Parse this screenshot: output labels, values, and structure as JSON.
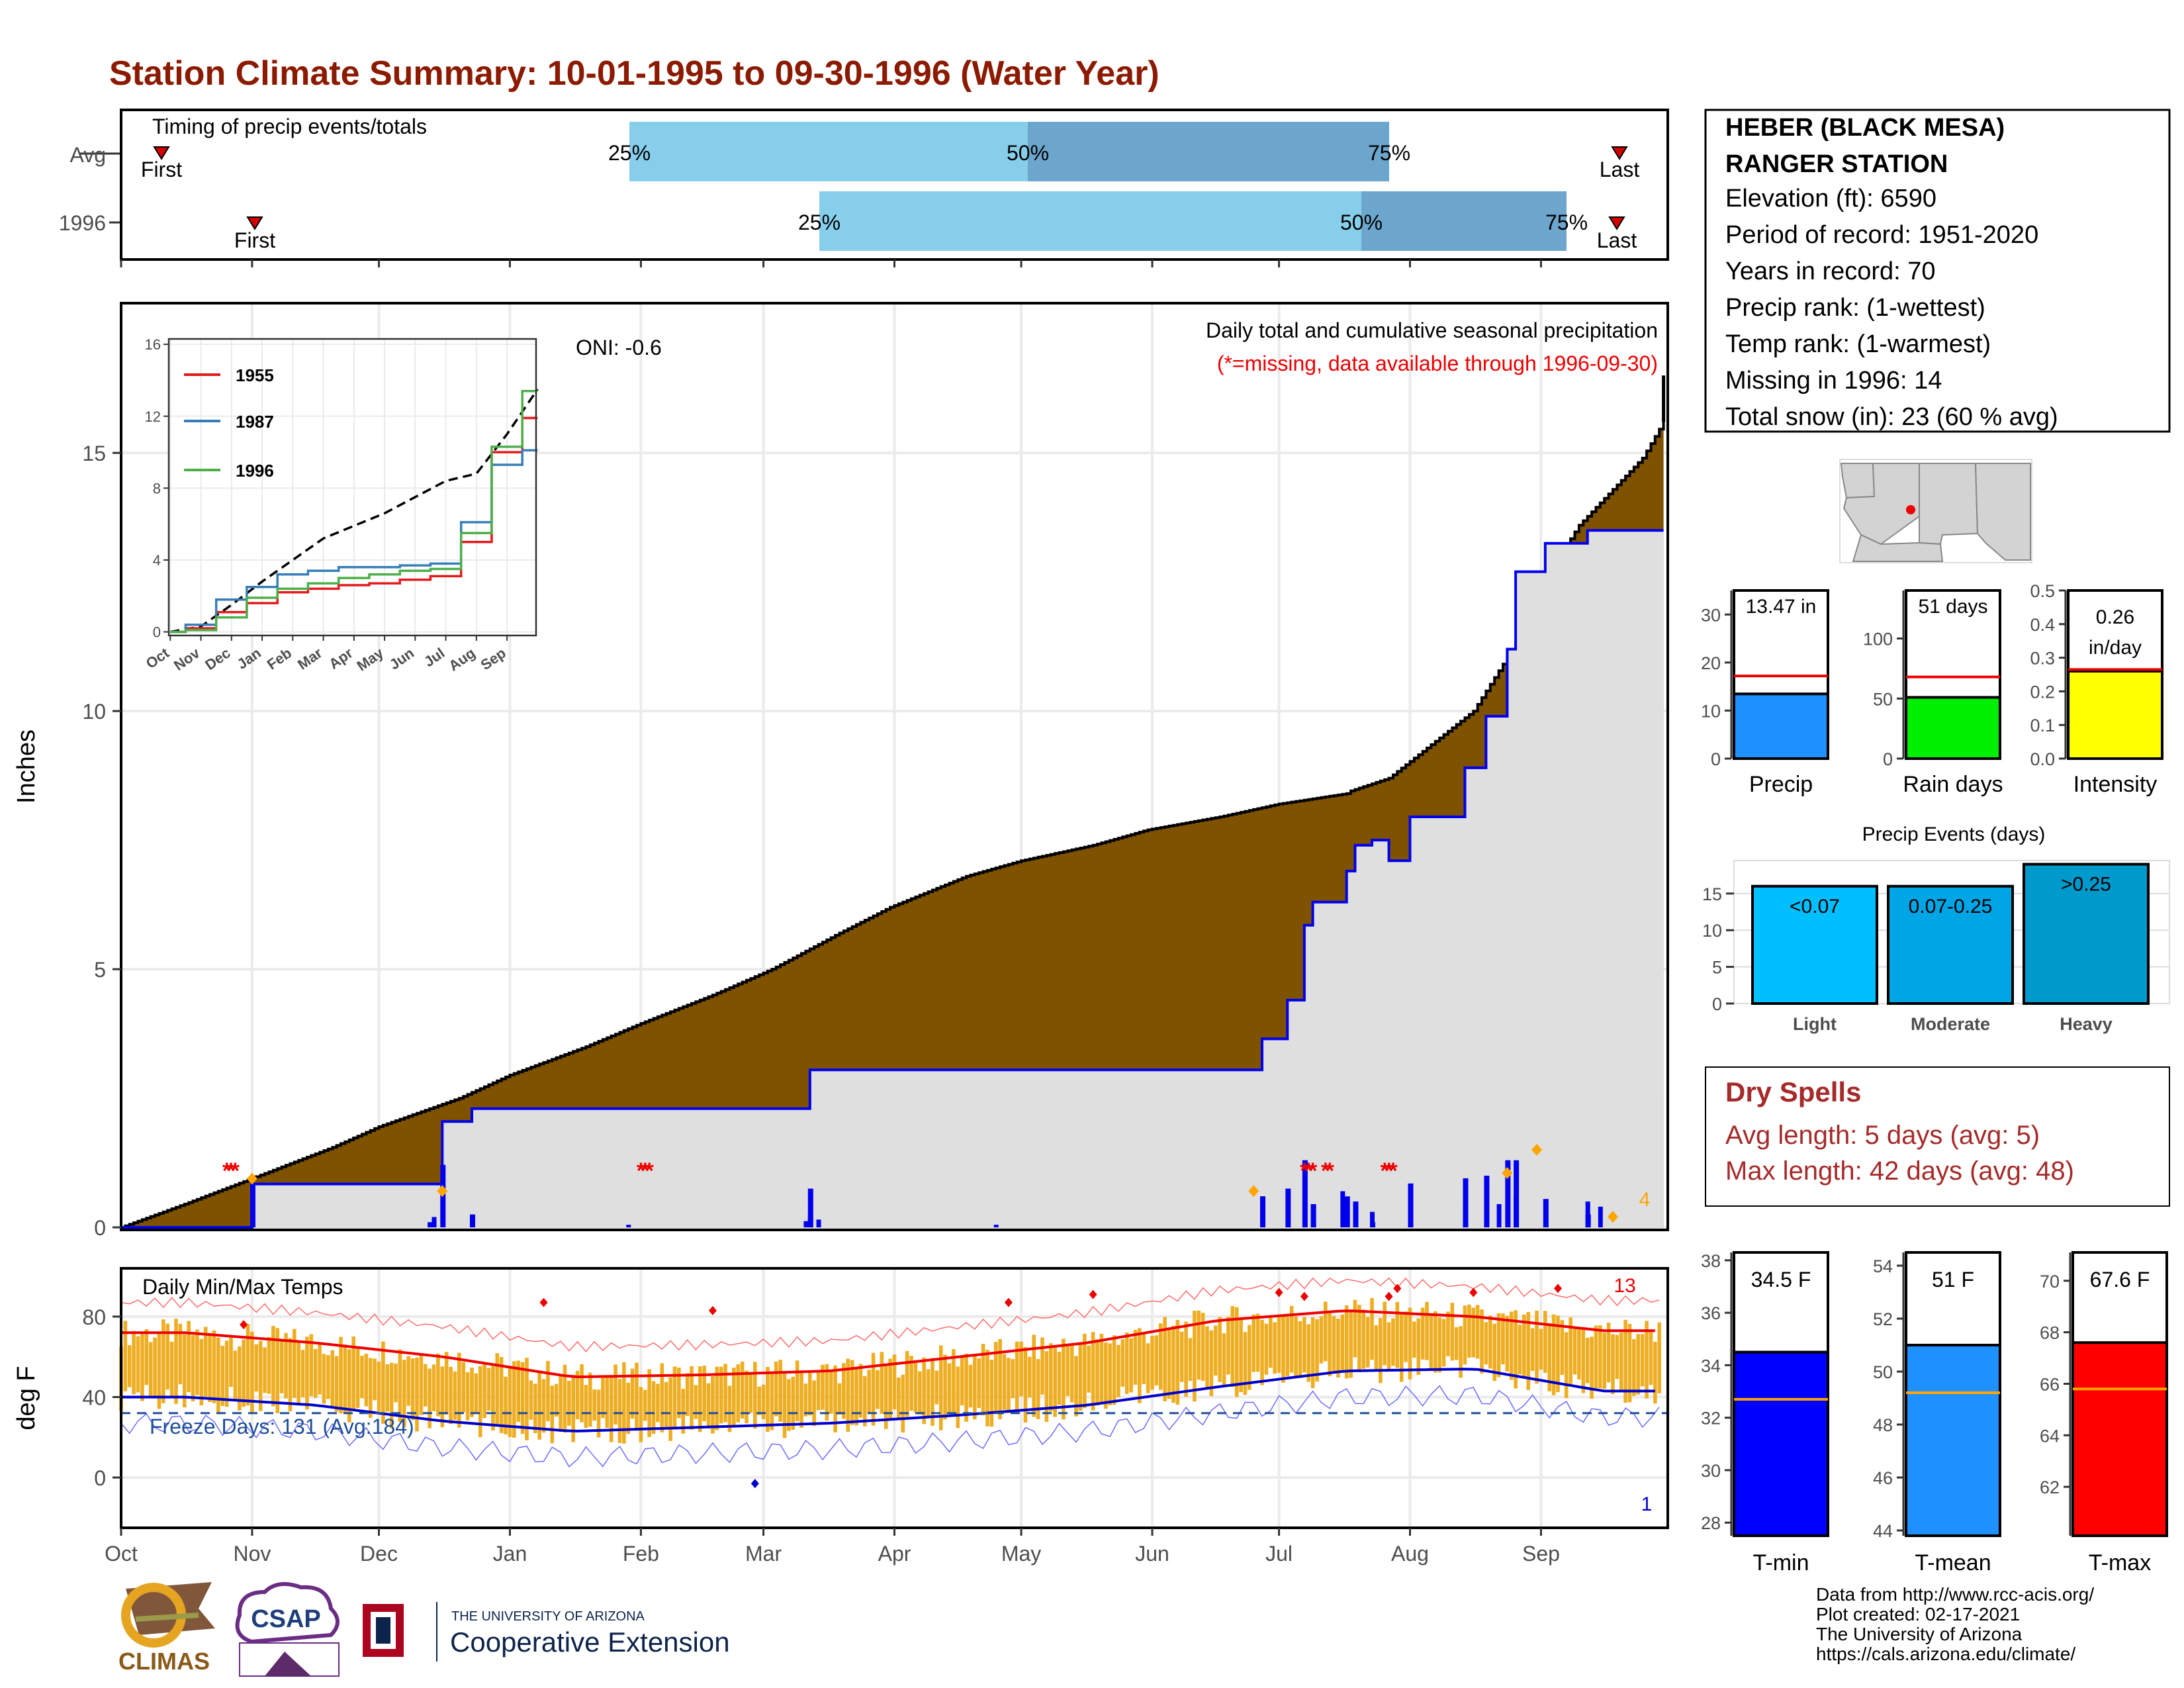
{
  "title": "Station Climate Summary: 10-01-1995 to 09-30-1996 (Water Year)",
  "months": [
    "Oct",
    "Nov",
    "Dec",
    "Jan",
    "Feb",
    "Mar",
    "Apr",
    "May",
    "Jun",
    "Jul",
    "Aug",
    "Sep"
  ],
  "colors": {
    "title": "#8B1A00",
    "precip_fill": "#7F5200",
    "current_fill": "#DFDFDF",
    "current_line": "#0000EE",
    "q_light": "#87CEEB",
    "q_dark": "#6CA6CD",
    "red": "#EE0000",
    "temp_bar": "#EEAE24",
    "dry_text": "#A52A2A"
  },
  "timing": {
    "title": "Timing of precip events/totals",
    "rows": [
      {
        "label": "Avg",
        "first": "First",
        "q25": "25%",
        "q50": "50%",
        "q75": "75%",
        "last": "Last"
      },
      {
        "label": "1996",
        "first": "First",
        "q25": "25%",
        "q50": "50%",
        "q75": "75%",
        "last": "Last"
      }
    ]
  },
  "station": {
    "name1": "HEBER (BLACK MESA)",
    "name2": "RANGER STATION",
    "lines": [
      "Elevation (ft): 6590",
      "Period of record: 1951-2020",
      "Years in record: 70",
      "Precip rank:  (1-wettest)",
      "Temp rank:  (1-warmest)",
      "Missing in 1996: 14",
      "Total snow (in): 23 (60 % avg)"
    ]
  },
  "precip_panel": {
    "ylabel": "Inches",
    "oni": "ONI: -0.6",
    "label1": "Daily total and cumulative seasonal precipitation",
    "label2": "(*=missing, data available through 1996-09-30)",
    "corner_count": "4",
    "yticks": [
      "0",
      "5",
      "10",
      "15"
    ]
  },
  "inset": {
    "legend": [
      "1955",
      "1987",
      "1996"
    ],
    "legend_colors": [
      "#E41A1C",
      "#377EB8",
      "#4DAF4A"
    ],
    "yticks": [
      "0",
      "4",
      "8",
      "12",
      "16"
    ],
    "xticks": [
      "Oct",
      "Nov",
      "Dec",
      "Jan",
      "Feb",
      "Mar",
      "Apr",
      "May",
      "Jun",
      "Jul",
      "Aug",
      "Sep"
    ]
  },
  "bars_small": [
    {
      "label": "Precip",
      "value_text": "13.47 in",
      "value": 13.47,
      "avg": 17.2,
      "ymax": 35,
      "yticks": [
        "0",
        "10",
        "20",
        "30"
      ],
      "color": "#1E90FF"
    },
    {
      "label": "Rain days",
      "value_text": "51 days",
      "value": 51,
      "avg": 68,
      "ymax": 140,
      "yticks": [
        "0",
        "50",
        "100"
      ],
      "color": "#00EE00"
    },
    {
      "label": "Intensity",
      "value_text": "0.26",
      "value_text2": "in/day",
      "value": 0.26,
      "avg": 0.265,
      "ymax": 0.5,
      "yticks": [
        "0.0",
        "0.1",
        "0.2",
        "0.3",
        "0.4",
        "0.5"
      ],
      "color": "#FFFF00"
    }
  ],
  "events": {
    "title": "Precip Events (days)",
    "yticks": [
      "0",
      "5",
      "10",
      "15"
    ],
    "bars": [
      {
        "cat": "Light",
        "tag": "<0.07",
        "value": 16,
        "color": "#00BFFF"
      },
      {
        "cat": "Moderate",
        "tag": "0.07-0.25",
        "value": 16,
        "color": "#00A5E6"
      },
      {
        "cat": "Heavy",
        "tag": ">0.25",
        "value": 19,
        "color": "#0099CC"
      }
    ]
  },
  "dry_spells": {
    "title": "Dry Spells",
    "line1": "Avg length: 5 days (avg: 5)",
    "line2": "Max length: 42 days (avg: 48)"
  },
  "temp_panel": {
    "ylabel": "deg F",
    "title": "Daily Min/Max Temps",
    "freeze": "Freeze Days: 131 (Avg:184)",
    "max_count": "13",
    "min_count": "1",
    "yticks": [
      "0",
      "40",
      "80"
    ]
  },
  "temp_bars": [
    {
      "label": "T-min",
      "value_text": "34.5 F",
      "value": 34.5,
      "avg": 32.7,
      "ymin": 27.5,
      "ymax": 38.3,
      "yticks": [
        "28",
        "30",
        "32",
        "34",
        "36",
        "38"
      ],
      "color": "#0000FF"
    },
    {
      "label": "T-mean",
      "value_text": "51 F",
      "value": 51,
      "avg": 49.2,
      "ymin": 43.8,
      "ymax": 54.5,
      "yticks": [
        "44",
        "46",
        "48",
        "50",
        "52",
        "54"
      ],
      "color": "#1E90FF"
    },
    {
      "label": "T-max",
      "value_text": "67.6 F",
      "value": 67.6,
      "avg": 65.8,
      "ymin": 60.1,
      "ymax": 71.1,
      "yticks": [
        "62",
        "64",
        "66",
        "68",
        "70"
      ],
      "color": "#FF0000"
    }
  ],
  "footer": {
    "lines": [
      "Data from http://www.rcc-acis.org/",
      "Plot created: 02-17-2021",
      "The University of Arizona",
      "https://cals.arizona.edu/climate/"
    ],
    "logo_climas": "CLIMAS",
    "logo_csap": "CSAP",
    "logo_ua_small": "THE UNIVERSITY OF ARIZONA",
    "logo_ua_big": "Cooperative Extension"
  },
  "chart_data": [
    {
      "type": "area",
      "title": "Daily total and cumulative seasonal precipitation",
      "ylabel": "Inches",
      "ylim": [
        0,
        17.9
      ],
      "x_unit": "day of water year",
      "series": [
        {
          "name": "",
          "x": [
            0,
            15,
            31,
            50,
            61,
            80,
            92,
            110,
            123,
            140,
            154,
            170,
            182,
            200,
            213,
            230,
            243,
            260,
            274,
            290,
            289,
            300,
            320,
            330,
            335,
            345,
            360,
            365
          ],
          "values": [
            0,
            0.45,
            0.95,
            1.55,
            1.95,
            2.5,
            2.95,
            3.5,
            3.95,
            4.5,
            5.0,
            5.7,
            6.2,
            6.8,
            7.1,
            7.4,
            7.7,
            7.95,
            8.2,
            8.4,
            8.4,
            8.7,
            10.0,
            11.3,
            12.3,
            13.6,
            14.9,
            15.6
          ]
        },
        {
          "name": "",
          "x": [
            0,
            31,
            73,
            76,
            83,
            105,
            163,
            165,
            268,
            270,
            276,
            280,
            282,
            290,
            292,
            296,
            300,
            305,
            315,
            318,
            323,
            328,
            330,
            337,
            347,
            354,
            365
          ],
          "values": [
            0,
            0.84,
            0.84,
            2.05,
            2.3,
            2.3,
            3.05,
            3.05,
            3.05,
            3.65,
            4.4,
            5.85,
            6.3,
            6.9,
            7.4,
            7.5,
            7.1,
            7.95,
            7.95,
            8.9,
            9.9,
            11.2,
            12.7,
            13.25,
            13.5,
            13.5,
            13.5
          ]
        }
      ]
    },
    {
      "type": "line",
      "title": "",
      "x": [
        "Oct",
        "Nov",
        "Dec",
        "Jan",
        "Feb",
        "Mar",
        "Apr",
        "May",
        "Jun",
        "Jul",
        "Aug",
        "Sep"
      ],
      "ylim": [
        0,
        16.3
      ],
      "series": [
        {
          "name": "",
          "values": [
            0.3,
            1.5,
            2.8,
            4.0,
            5.2,
            5.9,
            6.6,
            7.5,
            8.4,
            8.8,
            11.0,
            13.5
          ]
        },
        {
          "name": "1955",
          "values": [
            0.2,
            1.1,
            1.6,
            2.2,
            2.4,
            2.6,
            2.7,
            2.9,
            3.1,
            5.0,
            10.0,
            11.9
          ]
        },
        {
          "name": "1987",
          "values": [
            0.4,
            1.8,
            2.5,
            3.2,
            3.4,
            3.6,
            3.6,
            3.7,
            3.8,
            6.1,
            9.3,
            10.1
          ]
        },
        {
          "name": "1996",
          "values": [
            0.1,
            0.8,
            1.9,
            2.4,
            2.7,
            3.0,
            3.2,
            3.4,
            3.5,
            5.5,
            10.3,
            13.4
          ]
        }
      ]
    },
    {
      "type": "bar",
      "title": "Precip Events (days)",
      "categories": [
        "Light",
        "Moderate",
        "Heavy"
      ],
      "values": [
        16,
        16,
        19
      ],
      "ylim": [
        0,
        19.5
      ]
    },
    {
      "type": "bar",
      "categories": [
        "Precip",
        "Rain days",
        "Intensity",
        "T-min",
        "T-mean",
        "T-max"
      ],
      "values": [
        13.47,
        51,
        0.26,
        34.5,
        51,
        67.6
      ]
    },
    {
      "type": "line",
      "title": "Daily Min/Max Temps",
      "ylabel": "deg F",
      "ylim": [
        -25,
        104
      ],
      "x": [
        "Oct",
        "Nov",
        "Dec",
        "Jan",
        "Feb",
        "Mar",
        "Apr",
        "May",
        "Jun",
        "Jul",
        "Aug",
        "Sep"
      ],
      "series": [
        {
          "name": "",
          "values": [
            72,
            67,
            60,
            50,
            51,
            53,
            60,
            67,
            78,
            83,
            80,
            73
          ]
        },
        {
          "name": "",
          "values": [
            40,
            36,
            28,
            23,
            25,
            27,
            31,
            36,
            45,
            53,
            54,
            43
          ]
        }
      ]
    }
  ]
}
